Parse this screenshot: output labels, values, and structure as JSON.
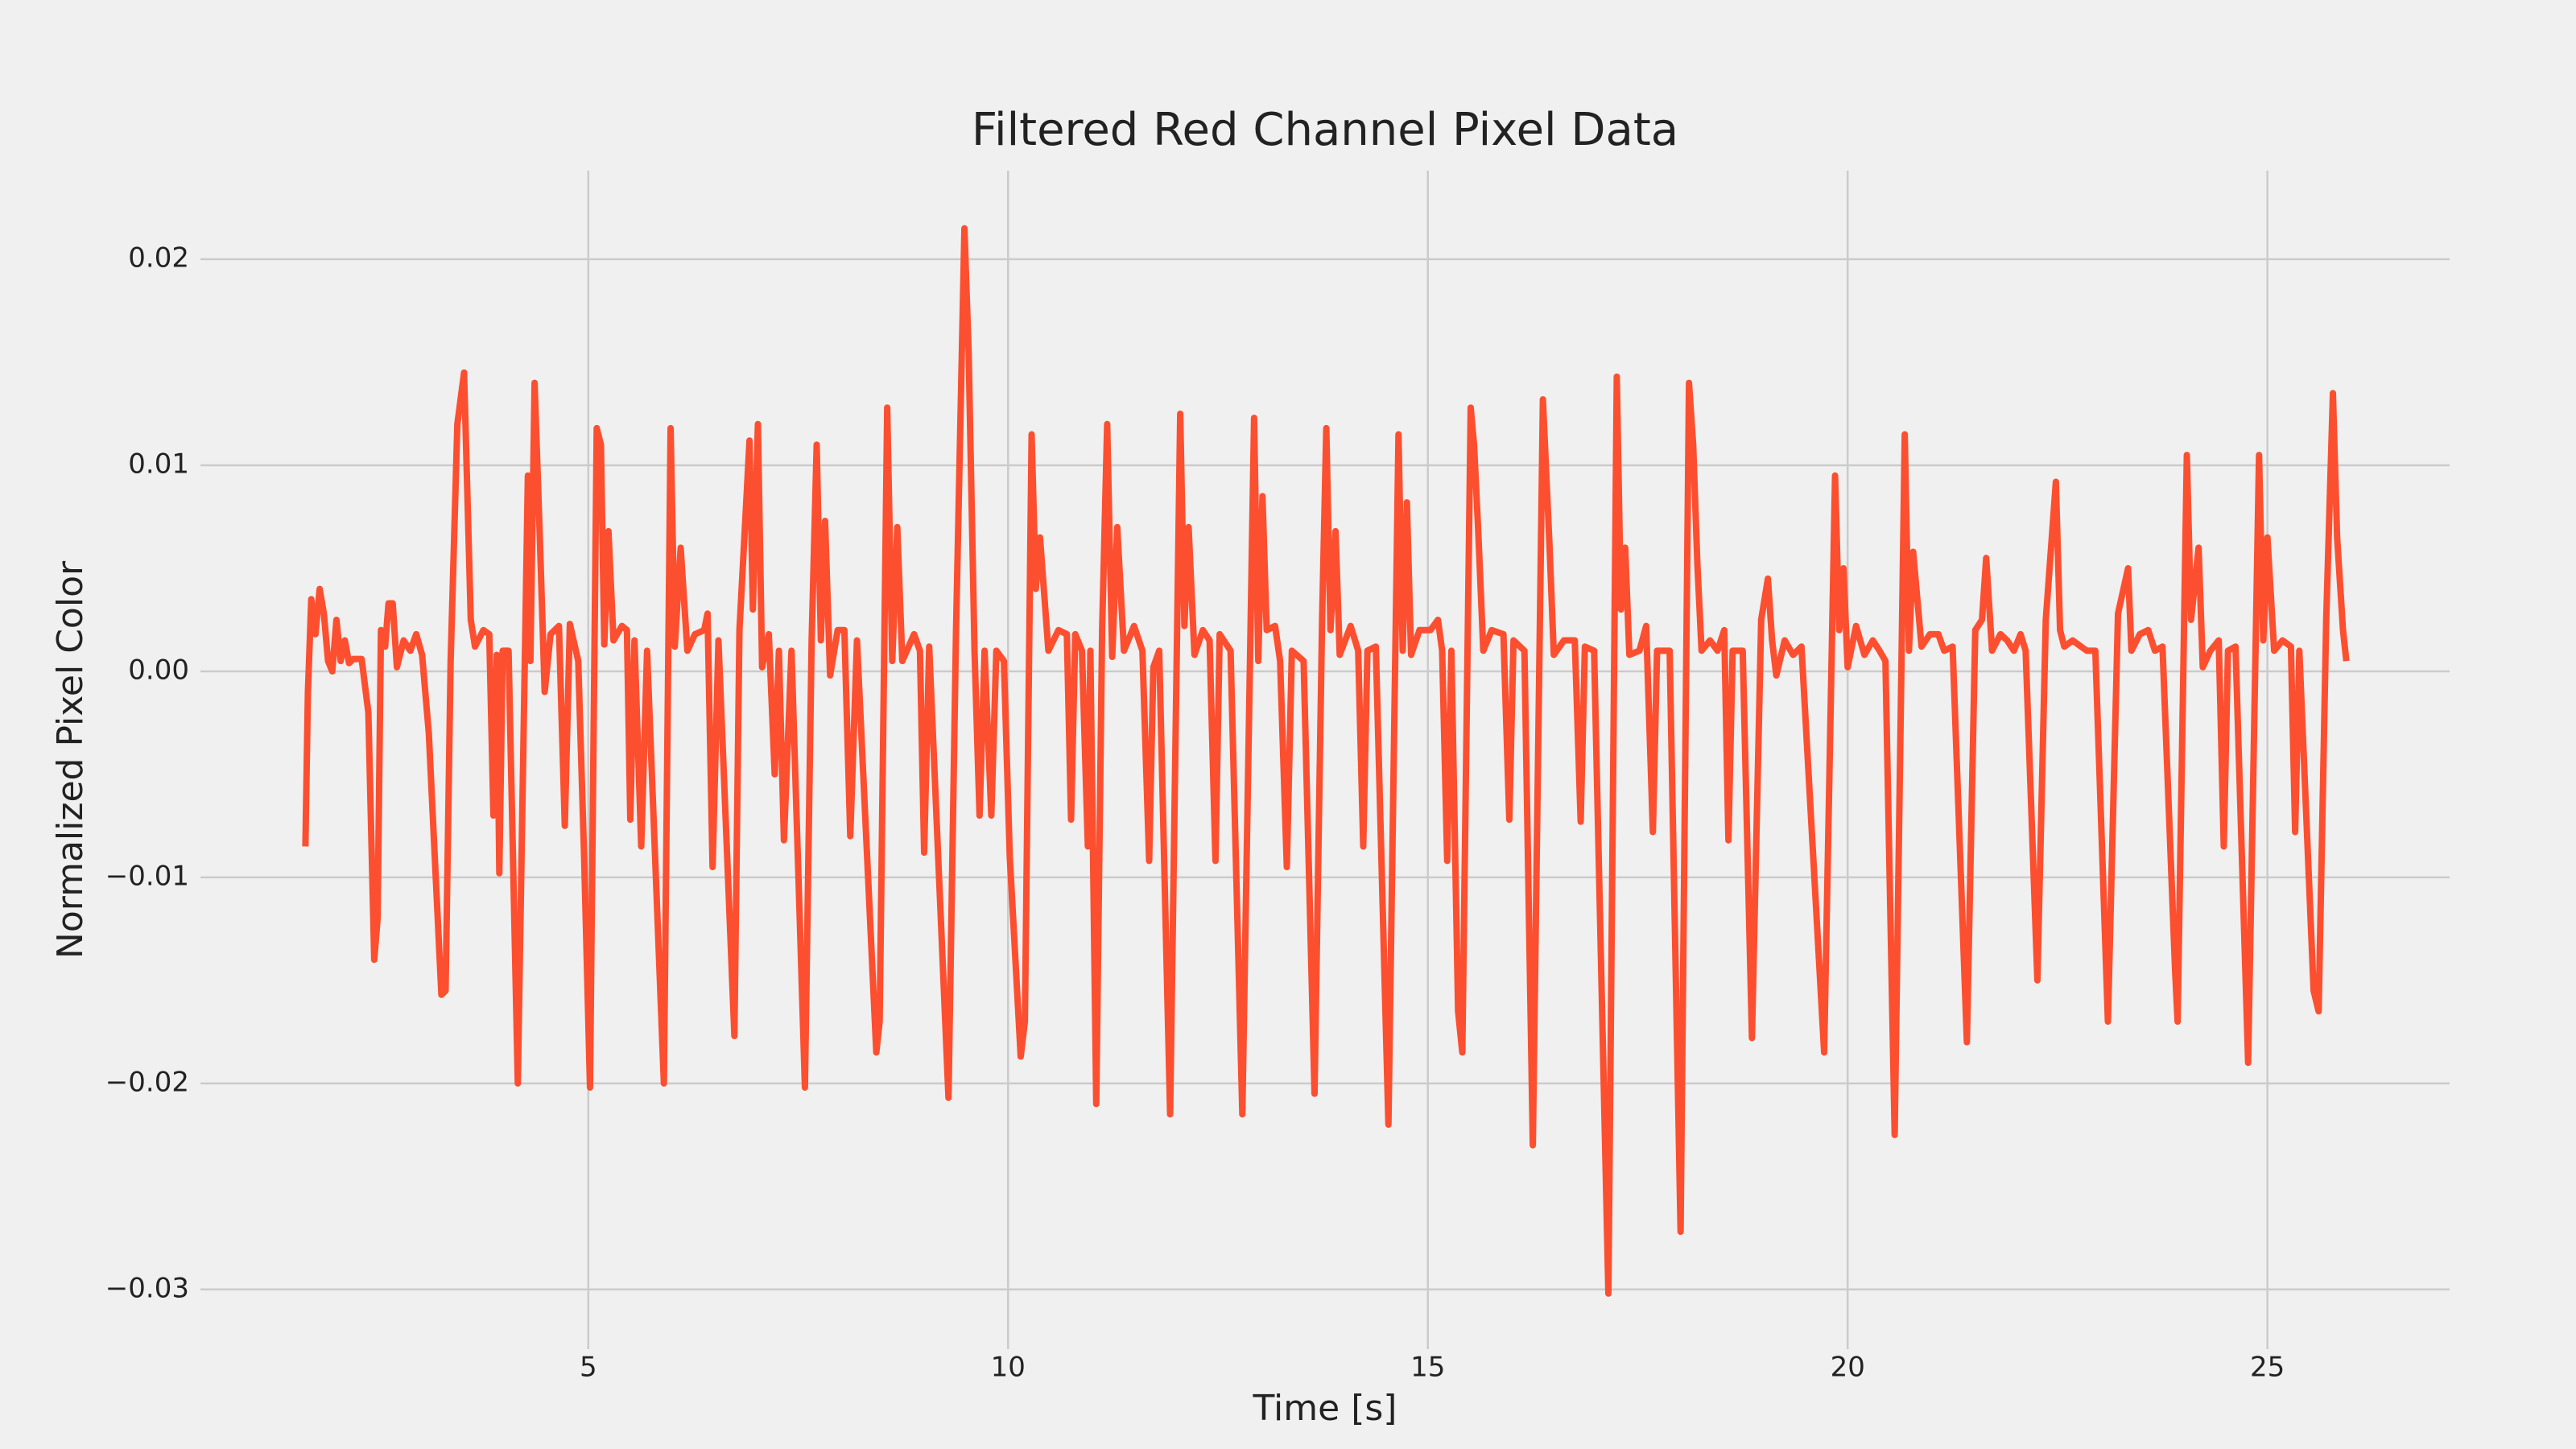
{
  "chart_data": {
    "type": "line",
    "title": "Filtered Red Channel Pixel Data",
    "x_label": "Time [s]",
    "y_label": "Normalized Pixel Color",
    "color": "#fc4f30",
    "grid": true,
    "xlim": [
      0.38,
      27.17
    ],
    "ylim": [
      -0.0329,
      0.0243
    ],
    "xticks": [
      5,
      10,
      15,
      20,
      25
    ],
    "yticks": [
      {
        "value": -0.03,
        "label": "−0.03"
      },
      {
        "value": -0.02,
        "label": "−0.02"
      },
      {
        "value": -0.01,
        "label": "−0.01"
      },
      {
        "value": 0,
        "label": "0.00"
      },
      0.01,
      0.02
    ],
    "x": [
      1.63,
      1.66,
      1.7,
      1.75,
      1.8,
      1.85,
      1.9,
      1.95,
      2.0,
      2.05,
      2.1,
      2.15,
      2.2,
      2.3,
      2.38,
      2.45,
      2.49,
      2.53,
      2.58,
      2.62,
      2.67,
      2.72,
      2.8,
      2.88,
      2.95,
      3.02,
      3.1,
      3.25,
      3.3,
      3.36,
      3.44,
      3.52,
      3.6,
      3.65,
      3.75,
      3.82,
      3.87,
      3.91,
      3.94,
      3.98,
      4.05,
      4.16,
      4.28,
      4.31,
      4.36,
      4.42,
      4.48,
      4.55,
      4.65,
      4.72,
      4.78,
      4.88,
      4.95,
      5.02,
      5.1,
      5.15,
      5.19,
      5.24,
      5.3,
      5.4,
      5.46,
      5.5,
      5.55,
      5.63,
      5.7,
      5.9,
      5.98,
      6.03,
      6.1,
      6.18,
      6.27,
      6.38,
      6.42,
      6.48,
      6.55,
      6.74,
      6.8,
      6.92,
      6.96,
      7.02,
      7.07,
      7.15,
      7.22,
      7.27,
      7.33,
      7.42,
      7.58,
      7.66,
      7.72,
      7.77,
      7.82,
      7.88,
      7.97,
      8.05,
      8.12,
      8.2,
      8.43,
      8.47,
      8.56,
      8.62,
      8.68,
      8.74,
      8.88,
      8.95,
      9.0,
      9.06,
      9.29,
      9.38,
      9.48,
      9.53,
      9.6,
      9.66,
      9.72,
      9.8,
      9.86,
      9.95,
      10.02,
      10.15,
      10.2,
      10.28,
      10.33,
      10.38,
      10.48,
      10.6,
      10.7,
      10.75,
      10.8,
      10.88,
      10.95,
      10.98,
      11.05,
      11.12,
      11.18,
      11.24,
      11.3,
      11.38,
      11.5,
      11.6,
      11.68,
      11.73,
      11.8,
      11.93,
      12.05,
      12.1,
      12.15,
      12.22,
      12.32,
      12.4,
      12.47,
      12.52,
      12.65,
      12.79,
      12.93,
      12.98,
      13.03,
      13.08,
      13.18,
      13.24,
      13.32,
      13.38,
      13.52,
      13.65,
      13.74,
      13.79,
      13.84,
      13.9,
      13.95,
      14.08,
      14.17,
      14.23,
      14.28,
      14.38,
      14.53,
      14.65,
      14.7,
      14.75,
      14.8,
      14.9,
      15.03,
      15.12,
      15.17,
      15.23,
      15.28,
      15.36,
      15.41,
      15.51,
      15.55,
      15.6,
      15.66,
      15.76,
      15.9,
      15.97,
      16.02,
      16.15,
      16.25,
      16.37,
      16.45,
      16.5,
      16.62,
      16.75,
      16.82,
      16.87,
      16.98,
      17.15,
      17.25,
      17.3,
      17.35,
      17.4,
      17.52,
      17.6,
      17.68,
      17.73,
      17.88,
      18.01,
      18.11,
      18.16,
      18.21,
      18.26,
      18.36,
      18.45,
      18.53,
      18.58,
      18.63,
      18.75,
      18.86,
      18.97,
      19.05,
      19.1,
      19.15,
      19.25,
      19.35,
      19.45,
      19.72,
      19.85,
      19.9,
      19.95,
      20.0,
      20.1,
      20.2,
      20.3,
      20.38,
      20.45,
      20.56,
      20.68,
      20.73,
      20.78,
      20.88,
      20.98,
      21.08,
      21.15,
      21.25,
      21.42,
      21.52,
      21.6,
      21.65,
      21.72,
      21.82,
      21.9,
      21.98,
      22.06,
      22.12,
      22.26,
      22.36,
      22.48,
      22.53,
      22.58,
      22.68,
      22.78,
      22.85,
      22.95,
      23.1,
      23.22,
      23.34,
      23.38,
      23.48,
      23.58,
      23.66,
      23.75,
      23.9,
      23.93,
      24.04,
      24.09,
      24.18,
      24.23,
      24.32,
      24.42,
      24.48,
      24.53,
      24.62,
      24.77,
      24.9,
      24.95,
      25.0,
      25.08,
      25.18,
      25.28,
      25.33,
      25.38,
      25.55,
      25.61,
      25.7,
      25.78,
      25.83,
      25.9,
      25.94
    ],
    "values": [
      -0.0085,
      -0.001,
      0.0035,
      0.0018,
      0.004,
      0.0028,
      0.0005,
      0.0,
      0.0025,
      0.0005,
      0.0015,
      0.0004,
      0.0006,
      0.0006,
      -0.002,
      -0.014,
      -0.012,
      0.002,
      0.0012,
      0.0033,
      0.0033,
      0.0002,
      0.0015,
      0.001,
      0.0018,
      0.0008,
      -0.003,
      -0.0157,
      -0.0155,
      0.0005,
      0.012,
      0.0145,
      0.0025,
      0.0012,
      0.002,
      0.0018,
      -0.007,
      0.0008,
      -0.0098,
      0.001,
      0.001,
      -0.02,
      0.0095,
      0.0005,
      0.014,
      0.0068,
      -0.001,
      0.0018,
      0.0022,
      -0.0075,
      0.0023,
      0.0005,
      -0.009,
      -0.0202,
      0.0118,
      0.011,
      0.0013,
      0.0068,
      0.0015,
      0.0022,
      0.002,
      -0.0072,
      0.0015,
      -0.0085,
      0.001,
      -0.02,
      0.0118,
      0.0012,
      0.006,
      0.001,
      0.0018,
      0.002,
      0.0028,
      -0.0095,
      0.0015,
      -0.0177,
      0.002,
      0.0112,
      0.003,
      0.012,
      0.0002,
      0.0018,
      -0.005,
      0.001,
      -0.0082,
      0.001,
      -0.0202,
      0.0015,
      0.011,
      0.0015,
      0.0073,
      -0.0002,
      0.002,
      0.002,
      -0.008,
      0.0015,
      -0.0185,
      -0.017,
      0.0128,
      0.0005,
      0.007,
      0.0005,
      0.0018,
      0.001,
      -0.0088,
      0.0012,
      -0.0207,
      0.002,
      0.0215,
      0.0155,
      0.001,
      -0.007,
      0.001,
      -0.007,
      0.001,
      0.0005,
      -0.009,
      -0.0187,
      -0.017,
      0.0115,
      0.004,
      0.0065,
      0.001,
      0.002,
      0.0018,
      -0.0072,
      0.0018,
      0.001,
      -0.0085,
      0.001,
      -0.021,
      0.002,
      0.012,
      0.0007,
      0.007,
      0.001,
      0.0022,
      0.001,
      -0.0092,
      0.0002,
      0.001,
      -0.0215,
      0.0125,
      0.0022,
      0.007,
      0.0008,
      0.002,
      0.0015,
      -0.0092,
      0.0018,
      0.001,
      -0.0215,
      0.0123,
      0.0005,
      0.0085,
      0.002,
      0.0022,
      0.0005,
      -0.0095,
      0.001,
      0.0005,
      -0.0205,
      0.0025,
      0.0118,
      0.002,
      0.0068,
      0.0008,
      0.0022,
      0.001,
      -0.0085,
      0.001,
      0.0012,
      -0.022,
      0.0115,
      0.001,
      0.0082,
      0.0008,
      0.002,
      0.002,
      0.0025,
      0.001,
      -0.0092,
      0.001,
      -0.0165,
      -0.0185,
      0.0128,
      0.011,
      0.0068,
      0.001,
      0.002,
      0.0018,
      -0.0072,
      0.0015,
      0.001,
      -0.023,
      0.0132,
      0.006,
      0.0008,
      0.0015,
      0.0015,
      -0.0073,
      0.0012,
      0.001,
      -0.0302,
      0.0143,
      0.003,
      0.006,
      0.0008,
      0.001,
      0.0022,
      -0.0078,
      0.001,
      0.001,
      -0.0272,
      0.014,
      0.011,
      0.0052,
      0.001,
      0.0015,
      0.001,
      0.002,
      -0.0082,
      0.001,
      0.001,
      -0.0178,
      0.0025,
      0.0045,
      0.0015,
      -0.0002,
      0.0015,
      0.0008,
      0.0012,
      -0.0185,
      0.0095,
      0.002,
      0.005,
      0.0002,
      0.0022,
      0.0008,
      0.0015,
      0.001,
      0.0005,
      -0.0225,
      0.0115,
      0.001,
      0.0058,
      0.0012,
      0.0018,
      0.0018,
      0.001,
      0.0012,
      -0.018,
      0.002,
      0.0025,
      0.0055,
      0.001,
      0.0018,
      0.0015,
      0.001,
      0.0018,
      0.001,
      -0.015,
      0.0025,
      0.0092,
      0.002,
      0.0012,
      0.0015,
      0.0012,
      0.001,
      0.001,
      -0.017,
      0.0028,
      0.005,
      0.001,
      0.0018,
      0.002,
      0.001,
      0.0012,
      -0.0145,
      -0.017,
      0.0105,
      0.0025,
      0.006,
      0.0002,
      0.001,
      0.0015,
      -0.0085,
      0.001,
      0.0012,
      -0.019,
      0.0105,
      0.0015,
      0.0065,
      0.001,
      0.0015,
      0.0012,
      -0.0078,
      0.001,
      -0.0155,
      -0.0165,
      0.0025,
      0.0135,
      0.0065,
      0.002,
      0.0005
    ]
  }
}
